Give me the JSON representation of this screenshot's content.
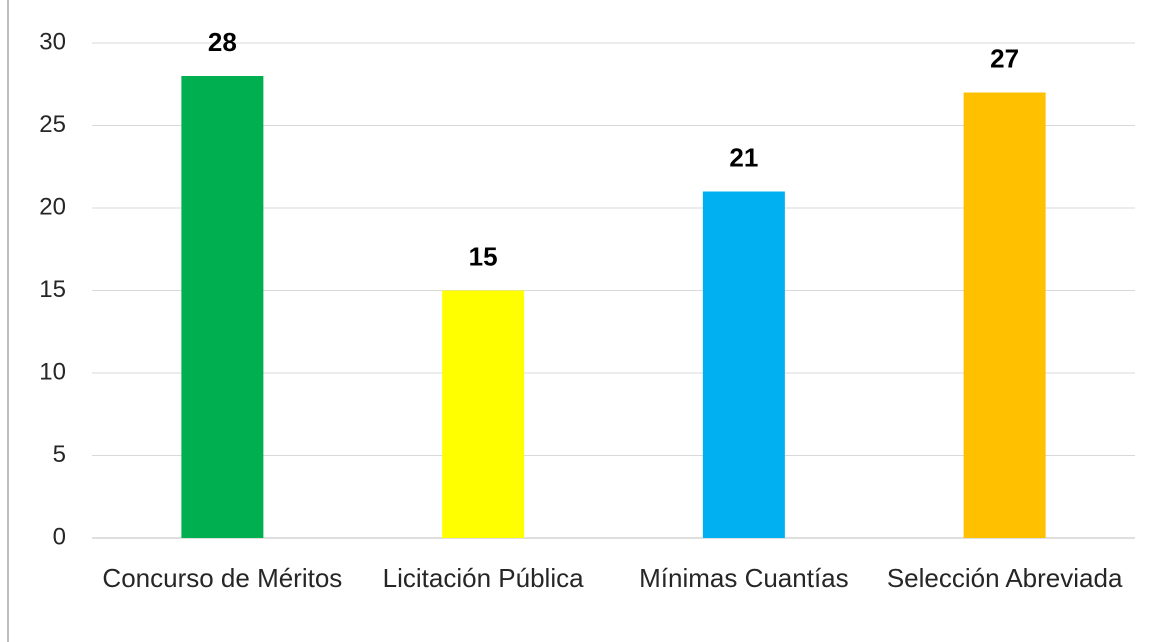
{
  "chart_data": {
    "type": "bar",
    "categories": [
      "Concurso de Méritos",
      "Licitación Pública",
      "Mínimas Cuantías",
      "Selección Abreviada"
    ],
    "values": [
      28,
      15,
      21,
      27
    ],
    "colors": [
      "#00b050",
      "#ffff00",
      "#00b0f0",
      "#ffc000"
    ],
    "ylim": [
      0,
      30
    ],
    "yticks": [
      0,
      5,
      10,
      15,
      20,
      25,
      30
    ],
    "grid": true
  }
}
